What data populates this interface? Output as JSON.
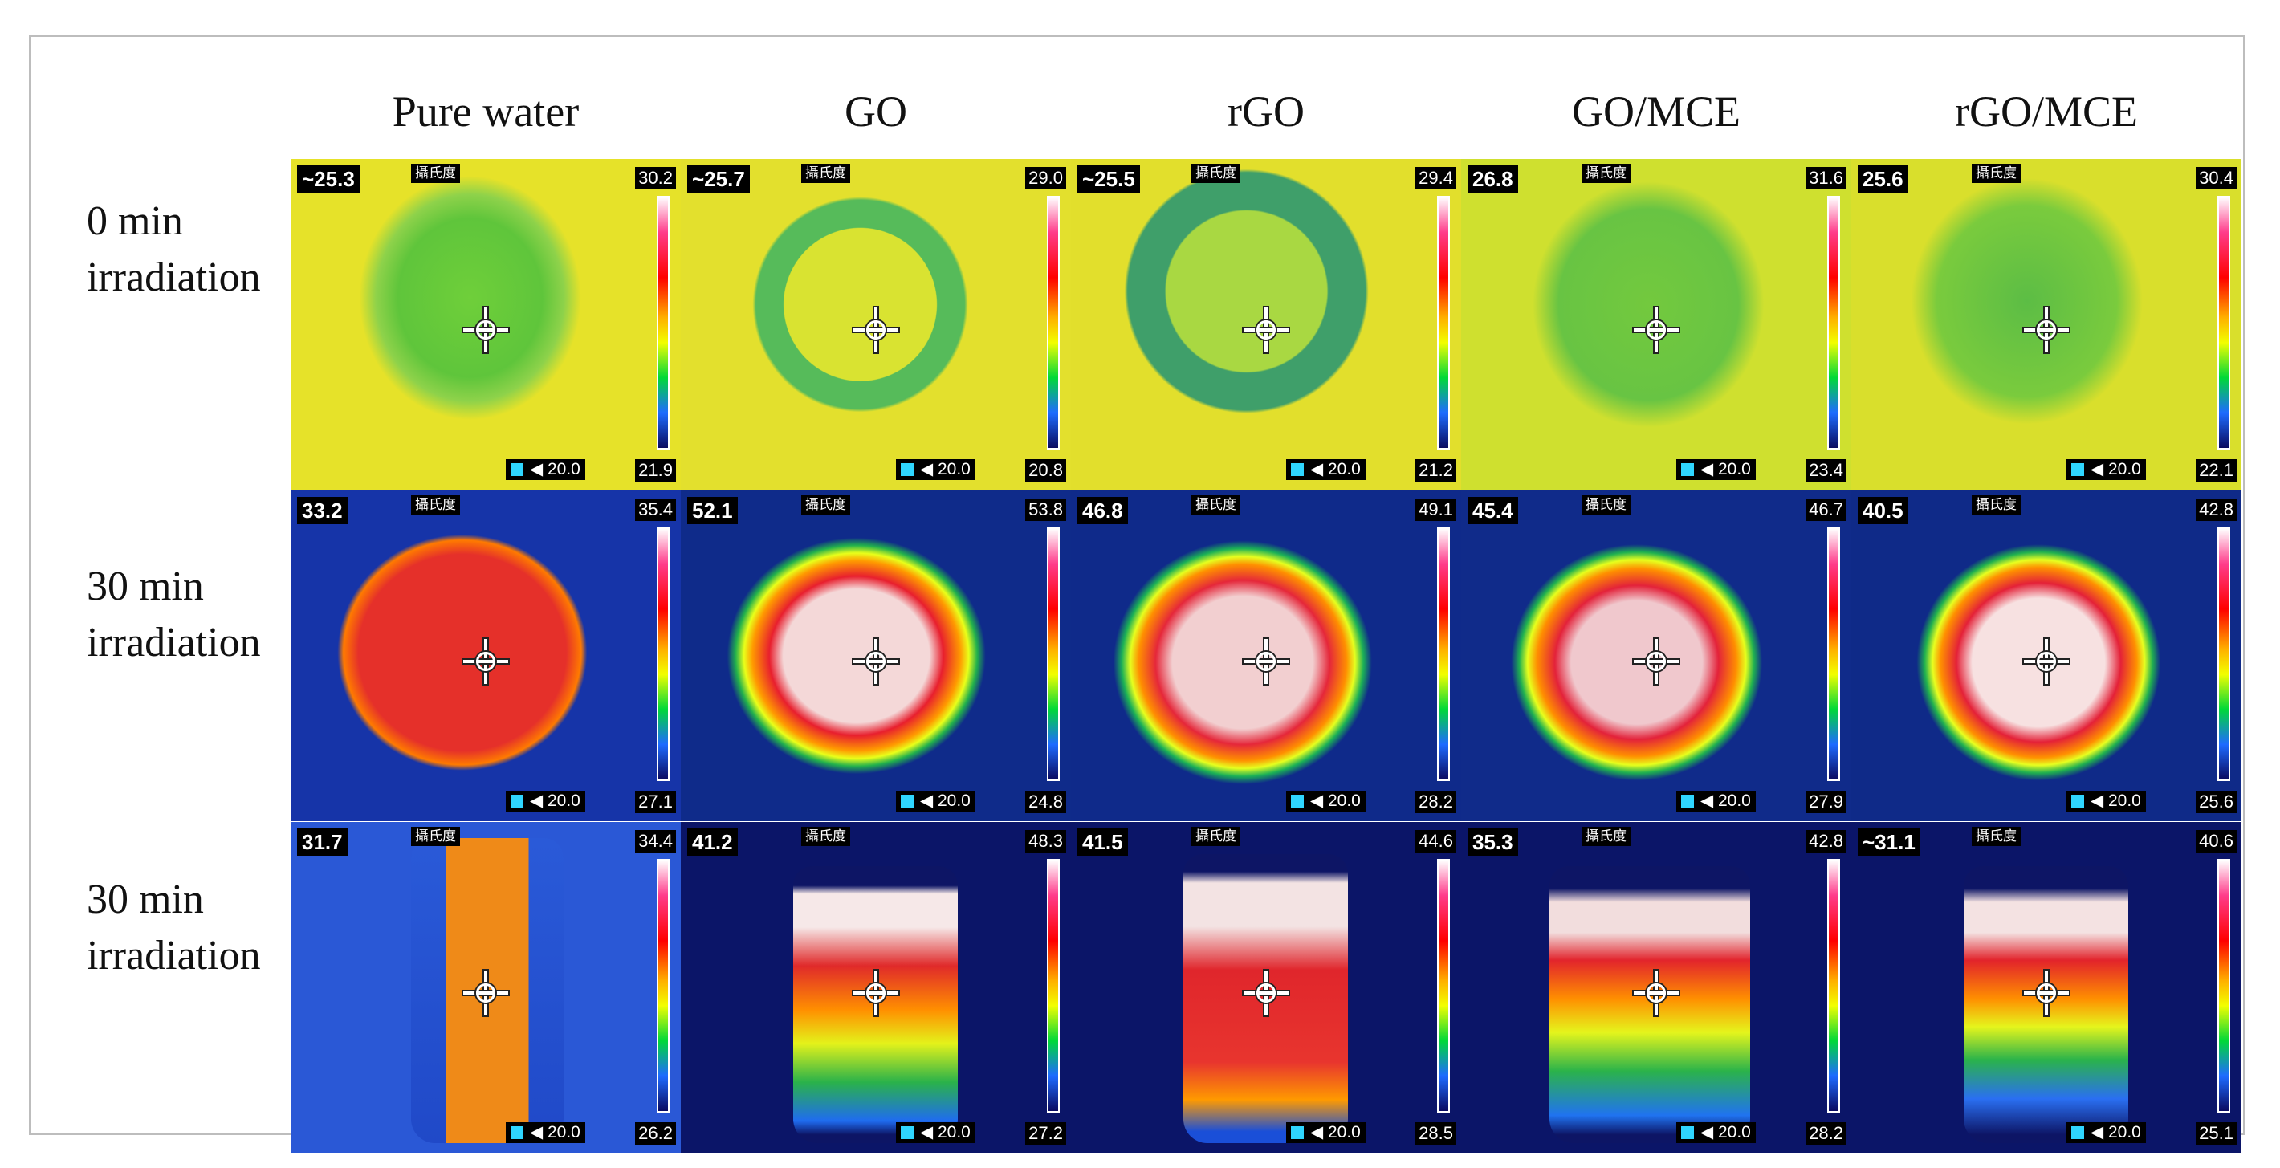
{
  "columns": [
    "Pure water",
    "GO",
    "rGO",
    "GO/MCE",
    "rGO/MCE"
  ],
  "rows": [
    {
      "label_line1": "0 min",
      "label_line2": "irradiation"
    },
    {
      "label_line1": "30 min",
      "label_line2": "irradiation"
    },
    {
      "label_line1": "30 min",
      "label_line2": "irradiation"
    }
  ],
  "unit_tag": "攝氏度",
  "emissivity": "◀ 20.0",
  "panels": [
    [
      {
        "readout": "~25.3",
        "max": "30.2",
        "min": "21.9"
      },
      {
        "readout": "~25.7",
        "max": "29.0",
        "min": "20.8"
      },
      {
        "readout": "~25.5",
        "max": "29.4",
        "min": "21.2"
      },
      {
        "readout": "26.8",
        "max": "31.6",
        "min": "23.4"
      },
      {
        "readout": "25.6",
        "max": "30.4",
        "min": "22.1"
      }
    ],
    [
      {
        "readout": "33.2",
        "max": "35.4",
        "min": "27.1"
      },
      {
        "readout": "52.1",
        "max": "53.8",
        "min": "24.8"
      },
      {
        "readout": "46.8",
        "max": "49.1",
        "min": "28.2"
      },
      {
        "readout": "45.4",
        "max": "46.7",
        "min": "27.9"
      },
      {
        "readout": "40.5",
        "max": "42.8",
        "min": "25.6"
      }
    ],
    [
      {
        "readout": "31.7",
        "max": "34.4",
        "min": "26.2"
      },
      {
        "readout": "41.2",
        "max": "48.3",
        "min": "27.2"
      },
      {
        "readout": "41.5",
        "max": "44.6",
        "min": "28.5"
      },
      {
        "readout": "35.3",
        "max": "42.8",
        "min": "28.2"
      },
      {
        "readout": "~31.1",
        "max": "40.6",
        "min": "25.1"
      }
    ]
  ]
}
